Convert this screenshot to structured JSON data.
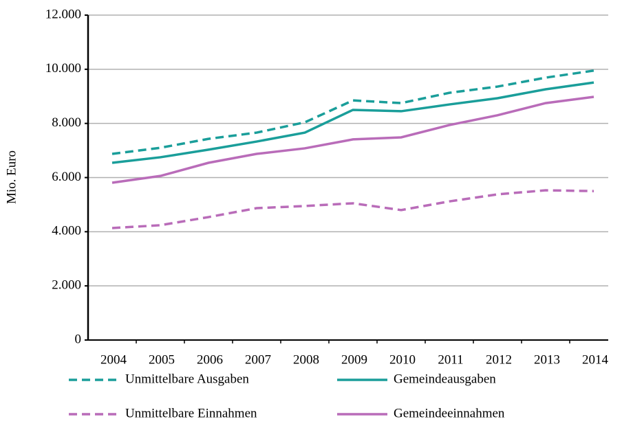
{
  "chart_data": {
    "type": "line",
    "y_label": "Mio. Euro",
    "categories": [
      "2004",
      "2005",
      "2006",
      "2007",
      "2008",
      "2009",
      "2010",
      "2011",
      "2012",
      "2013",
      "2014"
    ],
    "series": [
      {
        "name": "Unmittelbare Ausgaben",
        "color": "#1a9e9a",
        "dashed": true,
        "values": [
          6875,
          7100,
          7430,
          7660,
          8040,
          8850,
          8750,
          9130,
          9360,
          9690,
          9950
        ]
      },
      {
        "name": "Gemeindeausgaben",
        "color": "#1a9e9a",
        "dashed": false,
        "values": [
          6545,
          6750,
          7030,
          7330,
          7660,
          8500,
          8450,
          8700,
          8930,
          9260,
          9510
        ]
      },
      {
        "name": "Unmittelbare Einnahmen",
        "color": "#b96cb9",
        "dashed": true,
        "values": [
          4135,
          4240,
          4540,
          4870,
          4950,
          5050,
          4800,
          5120,
          5380,
          5530,
          5500
        ]
      },
      {
        "name": "Gemeindeeinnahmen",
        "color": "#b96cb9",
        "dashed": false,
        "values": [
          5810,
          6060,
          6545,
          6875,
          7080,
          7410,
          7485,
          7940,
          8300,
          8750,
          8980
        ]
      }
    ],
    "ylim": [
      0,
      12000
    ],
    "yticks": [
      0,
      {
        "value": 2000,
        "label": "2.000"
      },
      {
        "value": 4000,
        "label": "4.000"
      },
      {
        "value": 6000,
        "label": "6.000"
      },
      {
        "value": 8000,
        "label": "8.000"
      },
      {
        "value": 10000,
        "label": "10.000"
      },
      {
        "value": 12000,
        "label": "12.000"
      }
    ],
    "grid": true
  }
}
